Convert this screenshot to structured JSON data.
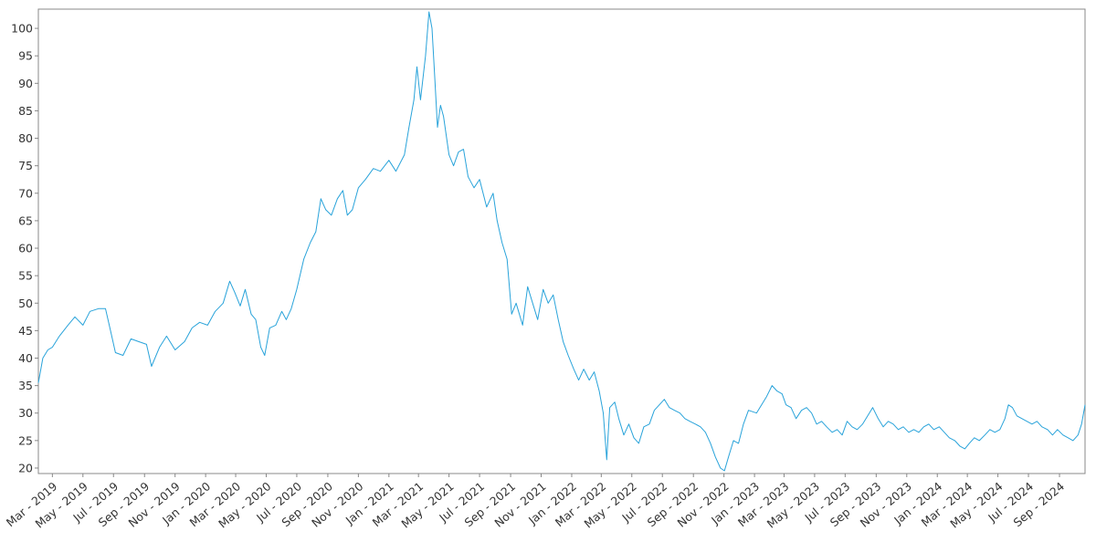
{
  "chart_data": {
    "type": "line",
    "title": "",
    "xlabel": "",
    "ylabel": "",
    "grid": false,
    "legend": "none",
    "line_color": "#29a3da",
    "axis_color": "#888888",
    "ylim": [
      19.0,
      103.5
    ],
    "xlim": [
      "2019-02-01",
      "2024-10-22"
    ],
    "y_ticks": [
      20,
      25,
      30,
      35,
      40,
      45,
      50,
      55,
      60,
      65,
      70,
      75,
      80,
      85,
      90,
      95,
      100
    ],
    "x_ticks": [
      {
        "date": "2019-03-01",
        "label": "Mar - 2019"
      },
      {
        "date": "2019-05-01",
        "label": "May - 2019"
      },
      {
        "date": "2019-07-01",
        "label": "Jul - 2019"
      },
      {
        "date": "2019-09-01",
        "label": "Sep - 2019"
      },
      {
        "date": "2019-11-01",
        "label": "Nov - 2019"
      },
      {
        "date": "2020-01-01",
        "label": "Jan - 2020"
      },
      {
        "date": "2020-03-01",
        "label": "Mar - 2020"
      },
      {
        "date": "2020-05-01",
        "label": "May - 2020"
      },
      {
        "date": "2020-07-01",
        "label": "Jul - 2020"
      },
      {
        "date": "2020-09-01",
        "label": "Sep - 2020"
      },
      {
        "date": "2020-11-01",
        "label": "Nov - 2020"
      },
      {
        "date": "2021-01-01",
        "label": "Jan - 2021"
      },
      {
        "date": "2021-03-01",
        "label": "Mar - 2021"
      },
      {
        "date": "2021-05-01",
        "label": "May - 2021"
      },
      {
        "date": "2021-07-01",
        "label": "Jul - 2021"
      },
      {
        "date": "2021-09-01",
        "label": "Sep - 2021"
      },
      {
        "date": "2021-11-01",
        "label": "Nov - 2021"
      },
      {
        "date": "2022-01-01",
        "label": "Jan - 2022"
      },
      {
        "date": "2022-03-01",
        "label": "Mar - 2022"
      },
      {
        "date": "2022-05-01",
        "label": "May - 2022"
      },
      {
        "date": "2022-07-01",
        "label": "Jul - 2022"
      },
      {
        "date": "2022-09-01",
        "label": "Sep - 2022"
      },
      {
        "date": "2022-11-01",
        "label": "Nov - 2022"
      },
      {
        "date": "2023-01-01",
        "label": "Jan - 2023"
      },
      {
        "date": "2023-03-01",
        "label": "Mar - 2023"
      },
      {
        "date": "2023-05-01",
        "label": "May - 2023"
      },
      {
        "date": "2023-07-01",
        "label": "Jul - 2023"
      },
      {
        "date": "2023-09-01",
        "label": "Sep - 2023"
      },
      {
        "date": "2023-11-01",
        "label": "Nov - 2023"
      },
      {
        "date": "2024-01-01",
        "label": "Jan - 2024"
      },
      {
        "date": "2024-03-01",
        "label": "Mar - 2024"
      },
      {
        "date": "2024-05-01",
        "label": "May - 2024"
      },
      {
        "date": "2024-07-01",
        "label": "Jul - 2024"
      },
      {
        "date": "2024-09-01",
        "label": "Sep - 2024"
      }
    ],
    "series": [
      {
        "points": [
          [
            "2019-02-01",
            35.5
          ],
          [
            "2019-02-10",
            40.0
          ],
          [
            "2019-02-20",
            41.5
          ],
          [
            "2019-03-01",
            42.0
          ],
          [
            "2019-03-15",
            44.0
          ],
          [
            "2019-04-01",
            46.0
          ],
          [
            "2019-04-15",
            47.5
          ],
          [
            "2019-05-01",
            46.0
          ],
          [
            "2019-05-15",
            48.5
          ],
          [
            "2019-06-01",
            49.0
          ],
          [
            "2019-06-15",
            49.0
          ],
          [
            "2019-06-25",
            45.0
          ],
          [
            "2019-07-05",
            41.0
          ],
          [
            "2019-07-20",
            40.5
          ],
          [
            "2019-08-05",
            43.5
          ],
          [
            "2019-08-20",
            43.0
          ],
          [
            "2019-09-05",
            42.5
          ],
          [
            "2019-09-15",
            38.5
          ],
          [
            "2019-10-01",
            42.0
          ],
          [
            "2019-10-15",
            44.0
          ],
          [
            "2019-11-01",
            41.5
          ],
          [
            "2019-11-20",
            43.0
          ],
          [
            "2019-12-05",
            45.5
          ],
          [
            "2019-12-20",
            46.5
          ],
          [
            "2020-01-05",
            46.0
          ],
          [
            "2020-01-20",
            48.5
          ],
          [
            "2020-02-05",
            50.0
          ],
          [
            "2020-02-18",
            54.0
          ],
          [
            "2020-02-28",
            52.0
          ],
          [
            "2020-03-10",
            49.5
          ],
          [
            "2020-03-20",
            52.5
          ],
          [
            "2020-04-01",
            48.0
          ],
          [
            "2020-04-10",
            47.0
          ],
          [
            "2020-04-20",
            42.0
          ],
          [
            "2020-04-28",
            40.5
          ],
          [
            "2020-05-08",
            45.5
          ],
          [
            "2020-05-20",
            46.0
          ],
          [
            "2020-06-01",
            48.5
          ],
          [
            "2020-06-10",
            47.0
          ],
          [
            "2020-06-20",
            49.0
          ],
          [
            "2020-07-01",
            52.5
          ],
          [
            "2020-07-15",
            58.0
          ],
          [
            "2020-07-28",
            61.0
          ],
          [
            "2020-08-08",
            63.0
          ],
          [
            "2020-08-18",
            69.0
          ],
          [
            "2020-08-28",
            67.0
          ],
          [
            "2020-09-08",
            66.0
          ],
          [
            "2020-09-20",
            69.0
          ],
          [
            "2020-10-01",
            70.5
          ],
          [
            "2020-10-10",
            66.0
          ],
          [
            "2020-10-20",
            67.0
          ],
          [
            "2020-11-01",
            71.0
          ],
          [
            "2020-11-15",
            72.5
          ],
          [
            "2020-12-01",
            74.5
          ],
          [
            "2020-12-15",
            74.0
          ],
          [
            "2021-01-01",
            76.0
          ],
          [
            "2021-01-15",
            74.0
          ],
          [
            "2021-02-01",
            77.0
          ],
          [
            "2021-02-10",
            82.0
          ],
          [
            "2021-02-20",
            87.0
          ],
          [
            "2021-02-26",
            93.0
          ],
          [
            "2021-03-05",
            87.0
          ],
          [
            "2021-03-15",
            95.0
          ],
          [
            "2021-03-22",
            103.0
          ],
          [
            "2021-03-28",
            100.0
          ],
          [
            "2021-04-02",
            92.0
          ],
          [
            "2021-04-08",
            82.0
          ],
          [
            "2021-04-14",
            86.0
          ],
          [
            "2021-04-20",
            84.0
          ],
          [
            "2021-05-01",
            77.0
          ],
          [
            "2021-05-10",
            75.0
          ],
          [
            "2021-05-20",
            77.5
          ],
          [
            "2021-05-30",
            78.0
          ],
          [
            "2021-06-08",
            73.0
          ],
          [
            "2021-06-20",
            71.0
          ],
          [
            "2021-07-01",
            72.5
          ],
          [
            "2021-07-15",
            67.5
          ],
          [
            "2021-07-28",
            70.0
          ],
          [
            "2021-08-05",
            65.0
          ],
          [
            "2021-08-15",
            61.0
          ],
          [
            "2021-08-25",
            58.0
          ],
          [
            "2021-09-03",
            48.0
          ],
          [
            "2021-09-12",
            50.0
          ],
          [
            "2021-09-25",
            46.0
          ],
          [
            "2021-10-05",
            53.0
          ],
          [
            "2021-10-15",
            50.0
          ],
          [
            "2021-10-25",
            47.0
          ],
          [
            "2021-11-05",
            52.5
          ],
          [
            "2021-11-15",
            50.0
          ],
          [
            "2021-11-25",
            51.5
          ],
          [
            "2021-12-05",
            47.0
          ],
          [
            "2021-12-15",
            43.0
          ],
          [
            "2021-12-25",
            40.5
          ],
          [
            "2022-01-05",
            38.0
          ],
          [
            "2022-01-15",
            36.0
          ],
          [
            "2022-01-25",
            38.0
          ],
          [
            "2022-02-05",
            36.0
          ],
          [
            "2022-02-15",
            37.5
          ],
          [
            "2022-02-25",
            34.0
          ],
          [
            "2022-03-05",
            30.0
          ],
          [
            "2022-03-12",
            21.5
          ],
          [
            "2022-03-18",
            31.0
          ],
          [
            "2022-03-28",
            32.0
          ],
          [
            "2022-04-05",
            29.0
          ],
          [
            "2022-04-15",
            26.0
          ],
          [
            "2022-04-25",
            28.0
          ],
          [
            "2022-05-05",
            25.5
          ],
          [
            "2022-05-15",
            24.5
          ],
          [
            "2022-05-25",
            27.5
          ],
          [
            "2022-06-05",
            28.0
          ],
          [
            "2022-06-15",
            30.5
          ],
          [
            "2022-06-25",
            31.5
          ],
          [
            "2022-07-05",
            32.5
          ],
          [
            "2022-07-15",
            31.0
          ],
          [
            "2022-07-25",
            30.5
          ],
          [
            "2022-08-05",
            30.0
          ],
          [
            "2022-08-15",
            29.0
          ],
          [
            "2022-08-25",
            28.5
          ],
          [
            "2022-09-05",
            28.0
          ],
          [
            "2022-09-15",
            27.5
          ],
          [
            "2022-09-25",
            26.5
          ],
          [
            "2022-10-05",
            24.5
          ],
          [
            "2022-10-15",
            22.0
          ],
          [
            "2022-10-25",
            20.0
          ],
          [
            "2022-11-02",
            19.5
          ],
          [
            "2022-11-10",
            22.0
          ],
          [
            "2022-11-20",
            25.0
          ],
          [
            "2022-11-30",
            24.5
          ],
          [
            "2022-12-10",
            28.0
          ],
          [
            "2022-12-20",
            30.5
          ],
          [
            "2023-01-05",
            30.0
          ],
          [
            "2023-01-15",
            31.5
          ],
          [
            "2023-01-25",
            33.0
          ],
          [
            "2023-02-05",
            35.0
          ],
          [
            "2023-02-15",
            34.0
          ],
          [
            "2023-02-25",
            33.5
          ],
          [
            "2023-03-05",
            31.5
          ],
          [
            "2023-03-15",
            31.0
          ],
          [
            "2023-03-25",
            29.0
          ],
          [
            "2023-04-05",
            30.5
          ],
          [
            "2023-04-15",
            31.0
          ],
          [
            "2023-04-25",
            30.0
          ],
          [
            "2023-05-05",
            28.0
          ],
          [
            "2023-05-15",
            28.5
          ],
          [
            "2023-05-25",
            27.5
          ],
          [
            "2023-06-05",
            26.5
          ],
          [
            "2023-06-15",
            27.0
          ],
          [
            "2023-06-25",
            26.0
          ],
          [
            "2023-07-05",
            28.5
          ],
          [
            "2023-07-15",
            27.5
          ],
          [
            "2023-07-25",
            27.0
          ],
          [
            "2023-08-05",
            28.0
          ],
          [
            "2023-08-15",
            29.5
          ],
          [
            "2023-08-25",
            31.0
          ],
          [
            "2023-09-05",
            29.0
          ],
          [
            "2023-09-15",
            27.5
          ],
          [
            "2023-09-25",
            28.5
          ],
          [
            "2023-10-05",
            28.0
          ],
          [
            "2023-10-15",
            27.0
          ],
          [
            "2023-10-25",
            27.5
          ],
          [
            "2023-11-05",
            26.5
          ],
          [
            "2023-11-15",
            27.0
          ],
          [
            "2023-11-25",
            26.5
          ],
          [
            "2023-12-05",
            27.5
          ],
          [
            "2023-12-15",
            28.0
          ],
          [
            "2023-12-25",
            27.0
          ],
          [
            "2024-01-05",
            27.5
          ],
          [
            "2024-01-15",
            26.5
          ],
          [
            "2024-01-25",
            25.5
          ],
          [
            "2024-02-05",
            25.0
          ],
          [
            "2024-02-15",
            24.0
          ],
          [
            "2024-02-25",
            23.5
          ],
          [
            "2024-03-05",
            24.5
          ],
          [
            "2024-03-15",
            25.5
          ],
          [
            "2024-03-25",
            25.0
          ],
          [
            "2024-04-05",
            26.0
          ],
          [
            "2024-04-15",
            27.0
          ],
          [
            "2024-04-25",
            26.5
          ],
          [
            "2024-05-05",
            27.0
          ],
          [
            "2024-05-15",
            29.0
          ],
          [
            "2024-05-22",
            31.5
          ],
          [
            "2024-05-30",
            31.0
          ],
          [
            "2024-06-08",
            29.5
          ],
          [
            "2024-06-18",
            29.0
          ],
          [
            "2024-06-28",
            28.5
          ],
          [
            "2024-07-08",
            28.0
          ],
          [
            "2024-07-18",
            28.5
          ],
          [
            "2024-07-28",
            27.5
          ],
          [
            "2024-08-08",
            27.0
          ],
          [
            "2024-08-18",
            26.0
          ],
          [
            "2024-08-28",
            27.0
          ],
          [
            "2024-09-08",
            26.0
          ],
          [
            "2024-09-18",
            25.5
          ],
          [
            "2024-09-28",
            25.0
          ],
          [
            "2024-10-08",
            26.0
          ],
          [
            "2024-10-15",
            28.0
          ],
          [
            "2024-10-22",
            31.5
          ]
        ]
      }
    ]
  }
}
